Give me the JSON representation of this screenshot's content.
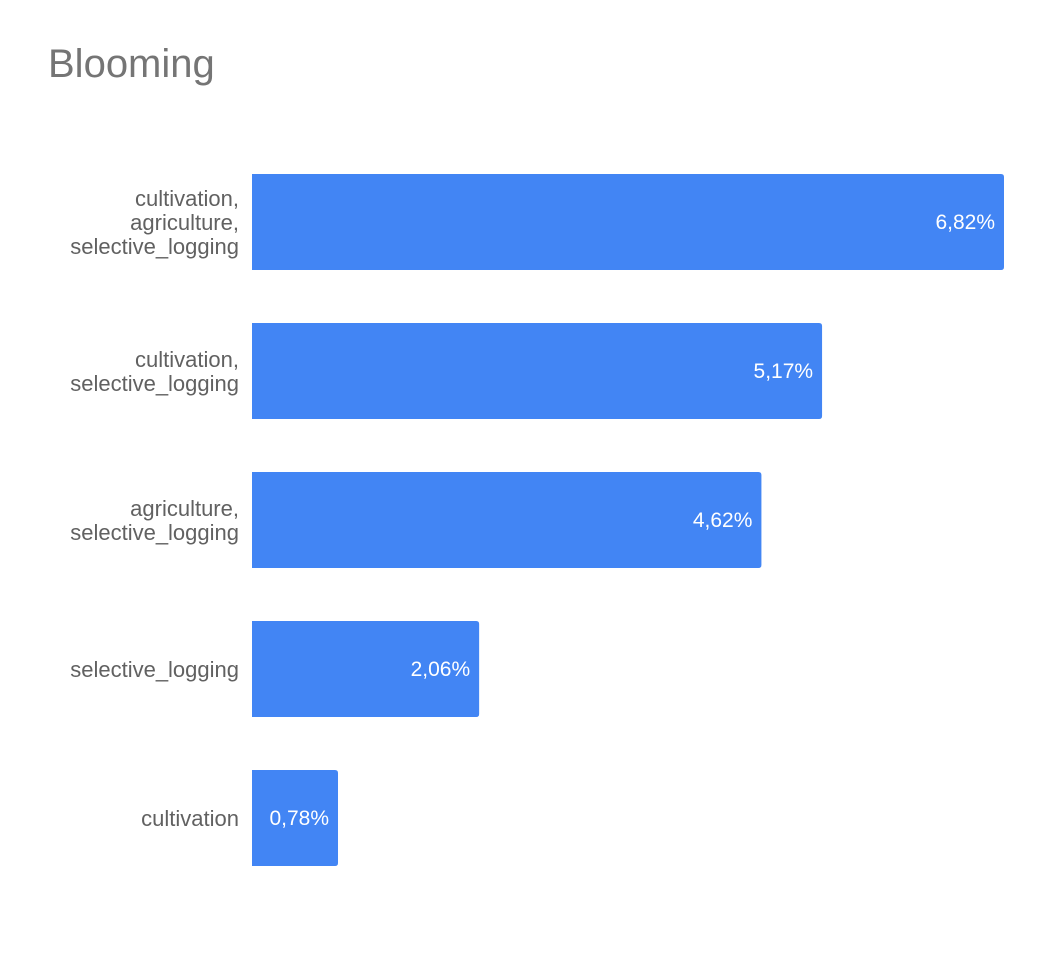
{
  "chart_data": {
    "type": "bar",
    "orientation": "horizontal",
    "title": "Blooming",
    "xlabel": "",
    "ylabel": "",
    "categories": [
      [
        "cultivation,",
        "agriculture,",
        "selective_logging"
      ],
      [
        "cultivation,",
        "selective_logging"
      ],
      [
        "agriculture,",
        "selective_logging"
      ],
      [
        "selective_logging"
      ],
      [
        "cultivation"
      ]
    ],
    "values": [
      6.82,
      5.17,
      4.62,
      2.06,
      0.78
    ],
    "value_labels": [
      "6,82%",
      "5,17%",
      "4,62%",
      "2,06%",
      "0,78%"
    ],
    "xlim": [
      0,
      6.82
    ],
    "grid": false,
    "legend": "none",
    "bar_color": "#4285f4"
  }
}
